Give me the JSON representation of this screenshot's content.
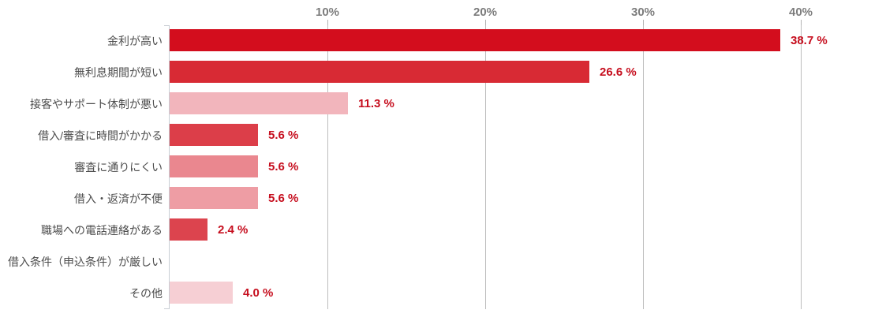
{
  "chart_data": {
    "type": "bar",
    "orientation": "horizontal",
    "title": "",
    "xlabel": "",
    "ylabel": "",
    "categories": [
      "金利が高い",
      "無利息期間が短い",
      "接客やサポート体制が悪い",
      "借入/審査に時間がかかる",
      "審査に通りにくい",
      "借入・返済が不便",
      "職場への電話連絡がある",
      "借入条件（申込条件）が厳しい",
      "その他"
    ],
    "values": [
      38.7,
      26.6,
      11.3,
      5.6,
      5.6,
      5.6,
      2.4,
      0,
      4.0
    ],
    "value_labels": [
      "38.7 %",
      "26.6 %",
      "11.3 %",
      "5.6 %",
      "5.6 %",
      "5.6 %",
      "2.4 %",
      "",
      "4.0 %"
    ],
    "bar_colors": [
      "#d30d1d",
      "#d82a34",
      "#f2b5bc",
      "#dc3e49",
      "#ea878f",
      "#ee9da4",
      "#dc444e",
      "",
      "#f6cfd4"
    ],
    "x_ticks": [
      {
        "value": 10,
        "label": "10%"
      },
      {
        "value": 20,
        "label": "20%"
      },
      {
        "value": 30,
        "label": "30%"
      },
      {
        "value": 40,
        "label": "40%"
      }
    ],
    "xlim": [
      0,
      45.4
    ],
    "grid": true,
    "legend": false
  },
  "colors": {
    "background": "#ffffff",
    "value_label": "#c60e1e",
    "tick_label": "#7c7c7c",
    "category_label": "#4d4d4d",
    "gridline": "#bdbdbd",
    "axis_line": "#c9ced4"
  }
}
